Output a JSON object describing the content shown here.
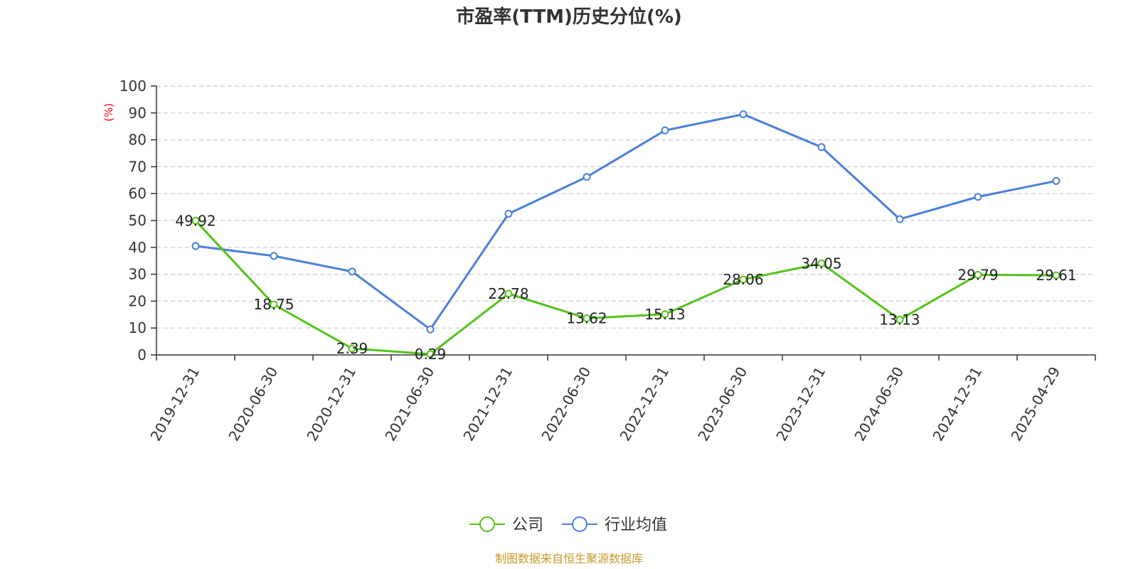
{
  "colors": {
    "company": "#52c41a",
    "industry": "#4a7fdc",
    "axis": "#333333",
    "grid": "#cccccc",
    "ylabel": "#ff0000",
    "source": "#c49a2a"
  },
  "chart_data": {
    "type": "line",
    "title": "市盈率(TTM)历史分位(%)",
    "xlabel": "",
    "ylabel": "(%)",
    "ylim": [
      0,
      100
    ],
    "yticks": [
      0,
      10,
      20,
      30,
      40,
      50,
      60,
      70,
      80,
      90,
      100
    ],
    "grid": true,
    "legend_position": "bottom",
    "categories": [
      "2019-12-31",
      "2020-06-30",
      "2020-12-31",
      "2021-06-30",
      "2021-12-31",
      "2022-06-30",
      "2022-12-31",
      "2023-06-30",
      "2023-12-31",
      "2024-06-30",
      "2024-12-31",
      "2025-04-29"
    ],
    "series": [
      {
        "name": "公司",
        "color_key": "company",
        "values": [
          49.92,
          18.75,
          2.39,
          0.29,
          22.78,
          13.62,
          15.13,
          28.06,
          34.05,
          13.13,
          29.79,
          29.61
        ],
        "labels": [
          "49.92",
          "18.75",
          "2.39",
          "0.29",
          "22.78",
          "13.62",
          "15.13",
          "28.06",
          "34.05",
          "13.13",
          "29.79",
          "29.61"
        ]
      },
      {
        "name": "行业均值",
        "color_key": "industry",
        "values": [
          40.5,
          36.8,
          31.0,
          9.5,
          52.5,
          66.2,
          83.5,
          89.5,
          77.3,
          50.5,
          58.8,
          64.7
        ]
      }
    ]
  },
  "source_text": "制图数据来自恒生聚源数据库"
}
